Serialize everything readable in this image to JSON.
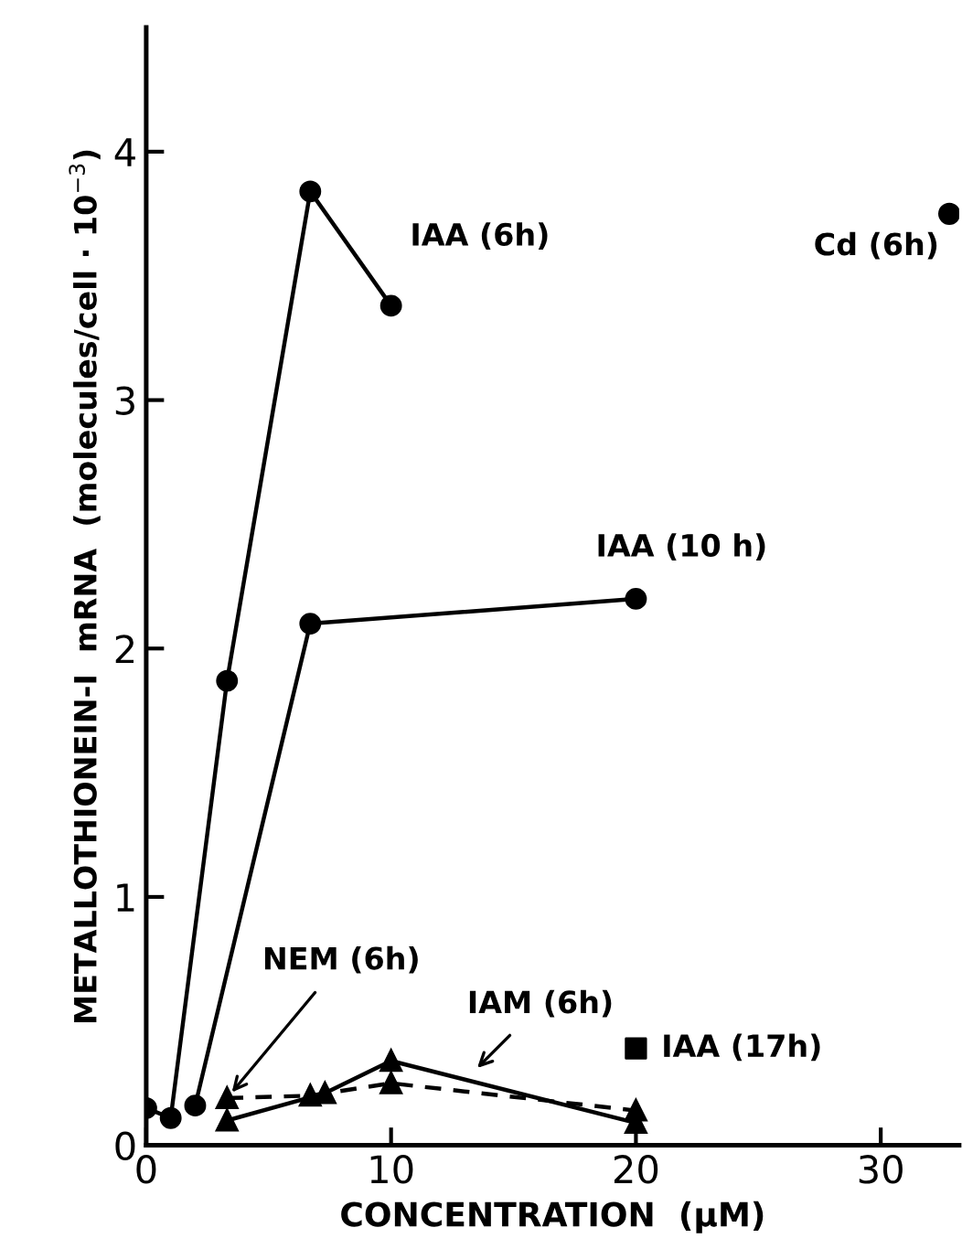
{
  "chart_data": {
    "type": "line",
    "xlabel": "CONCENTRATION  (μM)",
    "ylabel": "METALLOTHIONEIN-I  mRNA  (molecules/cell · 10$^{−3}$)",
    "xlim": [
      0,
      33.2
    ],
    "ylim": [
      0,
      4.5
    ],
    "xticks": [
      0,
      10,
      20,
      30
    ],
    "yticks": [
      0,
      1,
      2,
      3,
      4
    ],
    "grid": false,
    "legend": false,
    "series": [
      {
        "type": "line",
        "color": "#000000",
        "marker": "circle",
        "line_style": "solid",
        "x": [
          0,
          1,
          3.3,
          6.7,
          10
        ],
        "values": [
          0.15,
          0.11,
          1.87,
          3.84,
          3.38
        ]
      },
      {
        "type": "line",
        "color": "#000000",
        "marker": "circle",
        "line_style": "solid",
        "x": [
          2,
          6.7,
          20
        ],
        "values": [
          0.16,
          2.1,
          2.2
        ]
      },
      {
        "type": "line",
        "color": "#000000",
        "marker": "triangle",
        "line_style": "dashed",
        "x": [
          3.3,
          6.7,
          10,
          20
        ],
        "values": [
          0.19,
          0.2,
          0.25,
          0.14
        ]
      },
      {
        "type": "line",
        "color": "#000000",
        "marker": "triangle",
        "line_style": "solid",
        "x": [
          3.3,
          7.3,
          10,
          20
        ],
        "values": [
          0.1,
          0.21,
          0.34,
          0.09
        ]
      },
      {
        "type": "scatter",
        "color": "#000000",
        "marker": "square",
        "x": [
          20
        ],
        "values": [
          0.39
        ]
      },
      {
        "type": "scatter",
        "color": "#000000",
        "marker": "circle",
        "x": [
          32.8
        ],
        "values": [
          3.75
        ]
      }
    ],
    "annotations": [
      {
        "text": "IAA (6h)",
        "x": 10,
        "y": 3.38
      },
      {
        "text": "IAA (10 h)",
        "x": 20,
        "y": 2.2
      },
      {
        "text": "Cd (6h)",
        "x": 32.8,
        "y": 3.75
      },
      {
        "text": "NEM (6h)",
        "x": 3.3,
        "y": 0.19
      },
      {
        "text": "IAM (6h)",
        "x": 13.3,
        "y": 0.29
      },
      {
        "text": "IAA (17h)",
        "x": 20,
        "y": 0.39
      }
    ]
  }
}
